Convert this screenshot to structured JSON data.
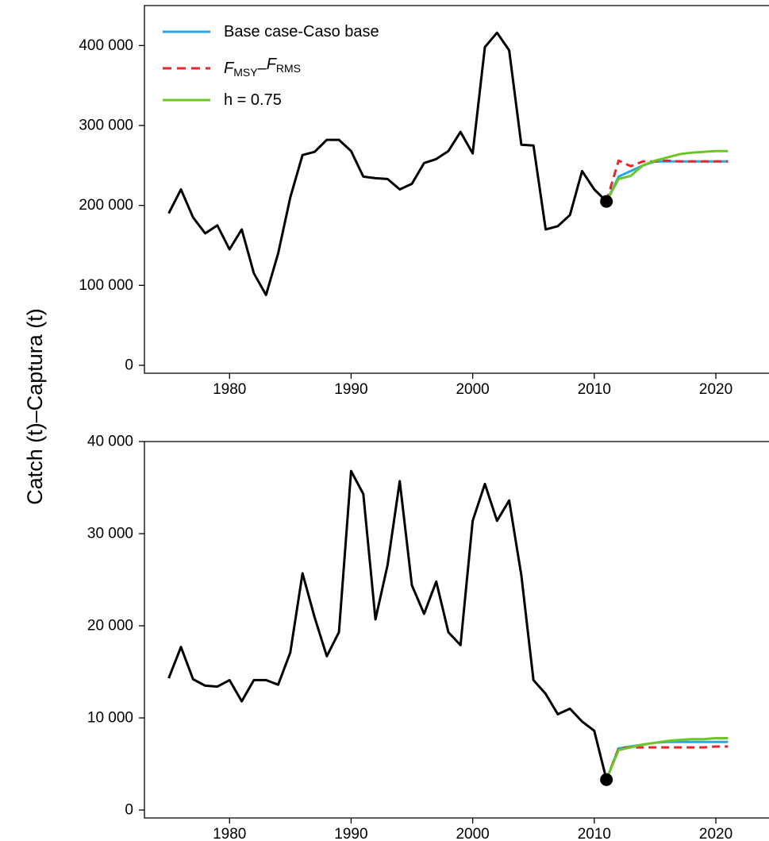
{
  "ylabel": "Catch (t)–Captura (t)",
  "colors": {
    "historical": "#000000",
    "base_case": "#29a8e0",
    "fmsy": "#e8262b",
    "h075": "#6cc625"
  },
  "legend": [
    {
      "key": "base_case",
      "label": "Base case-Caso base",
      "style": "solid"
    },
    {
      "key": "fmsy",
      "label_f1": "F",
      "label_s1": "MSY",
      "label_sep": "–",
      "label_f2": "F",
      "label_s2": "RMS",
      "style": "dashed"
    },
    {
      "key": "h075",
      "label": "h = 0.75",
      "style": "solid"
    }
  ],
  "chart_data": [
    {
      "type": "line",
      "xlim": [
        1973,
        2023
      ],
      "ylim": [
        0,
        450000
      ],
      "xticks": [
        1980,
        1990,
        2000,
        2010,
        2020
      ],
      "xtick_labels": [
        "1980",
        "1990",
        "2000",
        "2010",
        "2020"
      ],
      "yticks": [
        0,
        100000,
        200000,
        300000,
        400000
      ],
      "ytick_labels": [
        "0",
        "100 000",
        "200 000",
        "300 000",
        "400 000"
      ],
      "legend_position": "top-left",
      "marker": {
        "x": 2011,
        "y": 205000
      },
      "series": [
        {
          "key": "historical",
          "x": [
            1975,
            1976,
            1977,
            1978,
            1979,
            1980,
            1981,
            1982,
            1983,
            1984,
            1985,
            1986,
            1987,
            1988,
            1989,
            1990,
            1991,
            1992,
            1993,
            1994,
            1995,
            1996,
            1997,
            1998,
            1999,
            2000,
            2001,
            2002,
            2003,
            2004,
            2005,
            2006,
            2007,
            2008,
            2009,
            2010,
            2011
          ],
          "y": [
            190000,
            220000,
            185000,
            165000,
            175000,
            145000,
            170000,
            115000,
            88000,
            140000,
            210000,
            263000,
            267000,
            282000,
            282000,
            268000,
            236000,
            234000,
            233000,
            220000,
            227000,
            253000,
            258000,
            268000,
            292000,
            265000,
            398000,
            416000,
            394000,
            276000,
            275000,
            170000,
            174000,
            188000,
            243000,
            220000,
            205000
          ]
        },
        {
          "key": "base_case",
          "name": "Base case-Caso base",
          "x": [
            2011,
            2012,
            2013,
            2014,
            2015,
            2016,
            2017,
            2018,
            2019,
            2020,
            2021
          ],
          "y": [
            205000,
            236000,
            243000,
            250000,
            255000,
            255000,
            255000,
            255000,
            255000,
            255000,
            255000
          ]
        },
        {
          "key": "fmsy",
          "name": "FMSY–FRMS",
          "x": [
            2011,
            2012,
            2013,
            2014,
            2015,
            2016,
            2017,
            2018,
            2019,
            2020,
            2021
          ],
          "y": [
            205000,
            256000,
            249000,
            255000,
            255000,
            256000,
            255000,
            255000,
            255000,
            255000,
            255000
          ]
        },
        {
          "key": "h075",
          "name": "h = 0.75",
          "x": [
            2011,
            2012,
            2013,
            2014,
            2015,
            2016,
            2017,
            2018,
            2019,
            2020,
            2021
          ],
          "y": [
            205000,
            233000,
            237000,
            250000,
            256000,
            260000,
            264000,
            266000,
            267000,
            268000,
            268000
          ]
        }
      ]
    },
    {
      "type": "line",
      "xlim": [
        1973,
        2023
      ],
      "ylim": [
        0,
        40000
      ],
      "xticks": [
        1980,
        1990,
        2000,
        2010,
        2020
      ],
      "xtick_labels": [
        "1980",
        "1990",
        "2000",
        "2010",
        "2020"
      ],
      "yticks": [
        0,
        10000,
        20000,
        30000,
        40000
      ],
      "ytick_labels": [
        "0",
        "10 000",
        "20 000",
        "30 000",
        "40 000"
      ],
      "marker": {
        "x": 2011,
        "y": 3300
      },
      "series": [
        {
          "key": "historical",
          "x": [
            1975,
            1976,
            1977,
            1978,
            1979,
            1980,
            1981,
            1982,
            1983,
            1984,
            1985,
            1986,
            1987,
            1988,
            1989,
            1990,
            1991,
            1992,
            1993,
            1994,
            1995,
            1996,
            1997,
            1998,
            1999,
            2000,
            2001,
            2002,
            2003,
            2004,
            2005,
            2006,
            2007,
            2008,
            2009,
            2010,
            2011
          ],
          "y": [
            14300,
            17700,
            14200,
            13500,
            13400,
            14100,
            11800,
            14100,
            14100,
            13600,
            17100,
            25700,
            20900,
            16700,
            19300,
            36800,
            34300,
            20700,
            26600,
            35700,
            24400,
            21300,
            24800,
            19300,
            17900,
            31400,
            35400,
            31400,
            33600,
            25500,
            14100,
            12600,
            10400,
            11000,
            9600,
            8600,
            3300
          ]
        },
        {
          "key": "base_case",
          "name": "Base case-Caso base",
          "x": [
            2011,
            2012,
            2013,
            2014,
            2015,
            2016,
            2017,
            2018,
            2019,
            2020,
            2021
          ],
          "y": [
            3300,
            6700,
            6900,
            7100,
            7300,
            7400,
            7400,
            7400,
            7400,
            7400,
            7400
          ]
        },
        {
          "key": "fmsy",
          "name": "FMSY–FRMS",
          "x": [
            2011,
            2012,
            2013,
            2014,
            2015,
            2016,
            2017,
            2018,
            2019,
            2020,
            2021
          ],
          "y": [
            3300,
            6700,
            6800,
            6800,
            6800,
            6800,
            6800,
            6800,
            6800,
            6900,
            6900
          ]
        },
        {
          "key": "h075",
          "name": "h = 0.75",
          "x": [
            2011,
            2012,
            2013,
            2014,
            2015,
            2016,
            2017,
            2018,
            2019,
            2020,
            2021
          ],
          "y": [
            3300,
            6500,
            6800,
            7100,
            7300,
            7500,
            7600,
            7700,
            7700,
            7800,
            7800
          ]
        }
      ]
    }
  ]
}
